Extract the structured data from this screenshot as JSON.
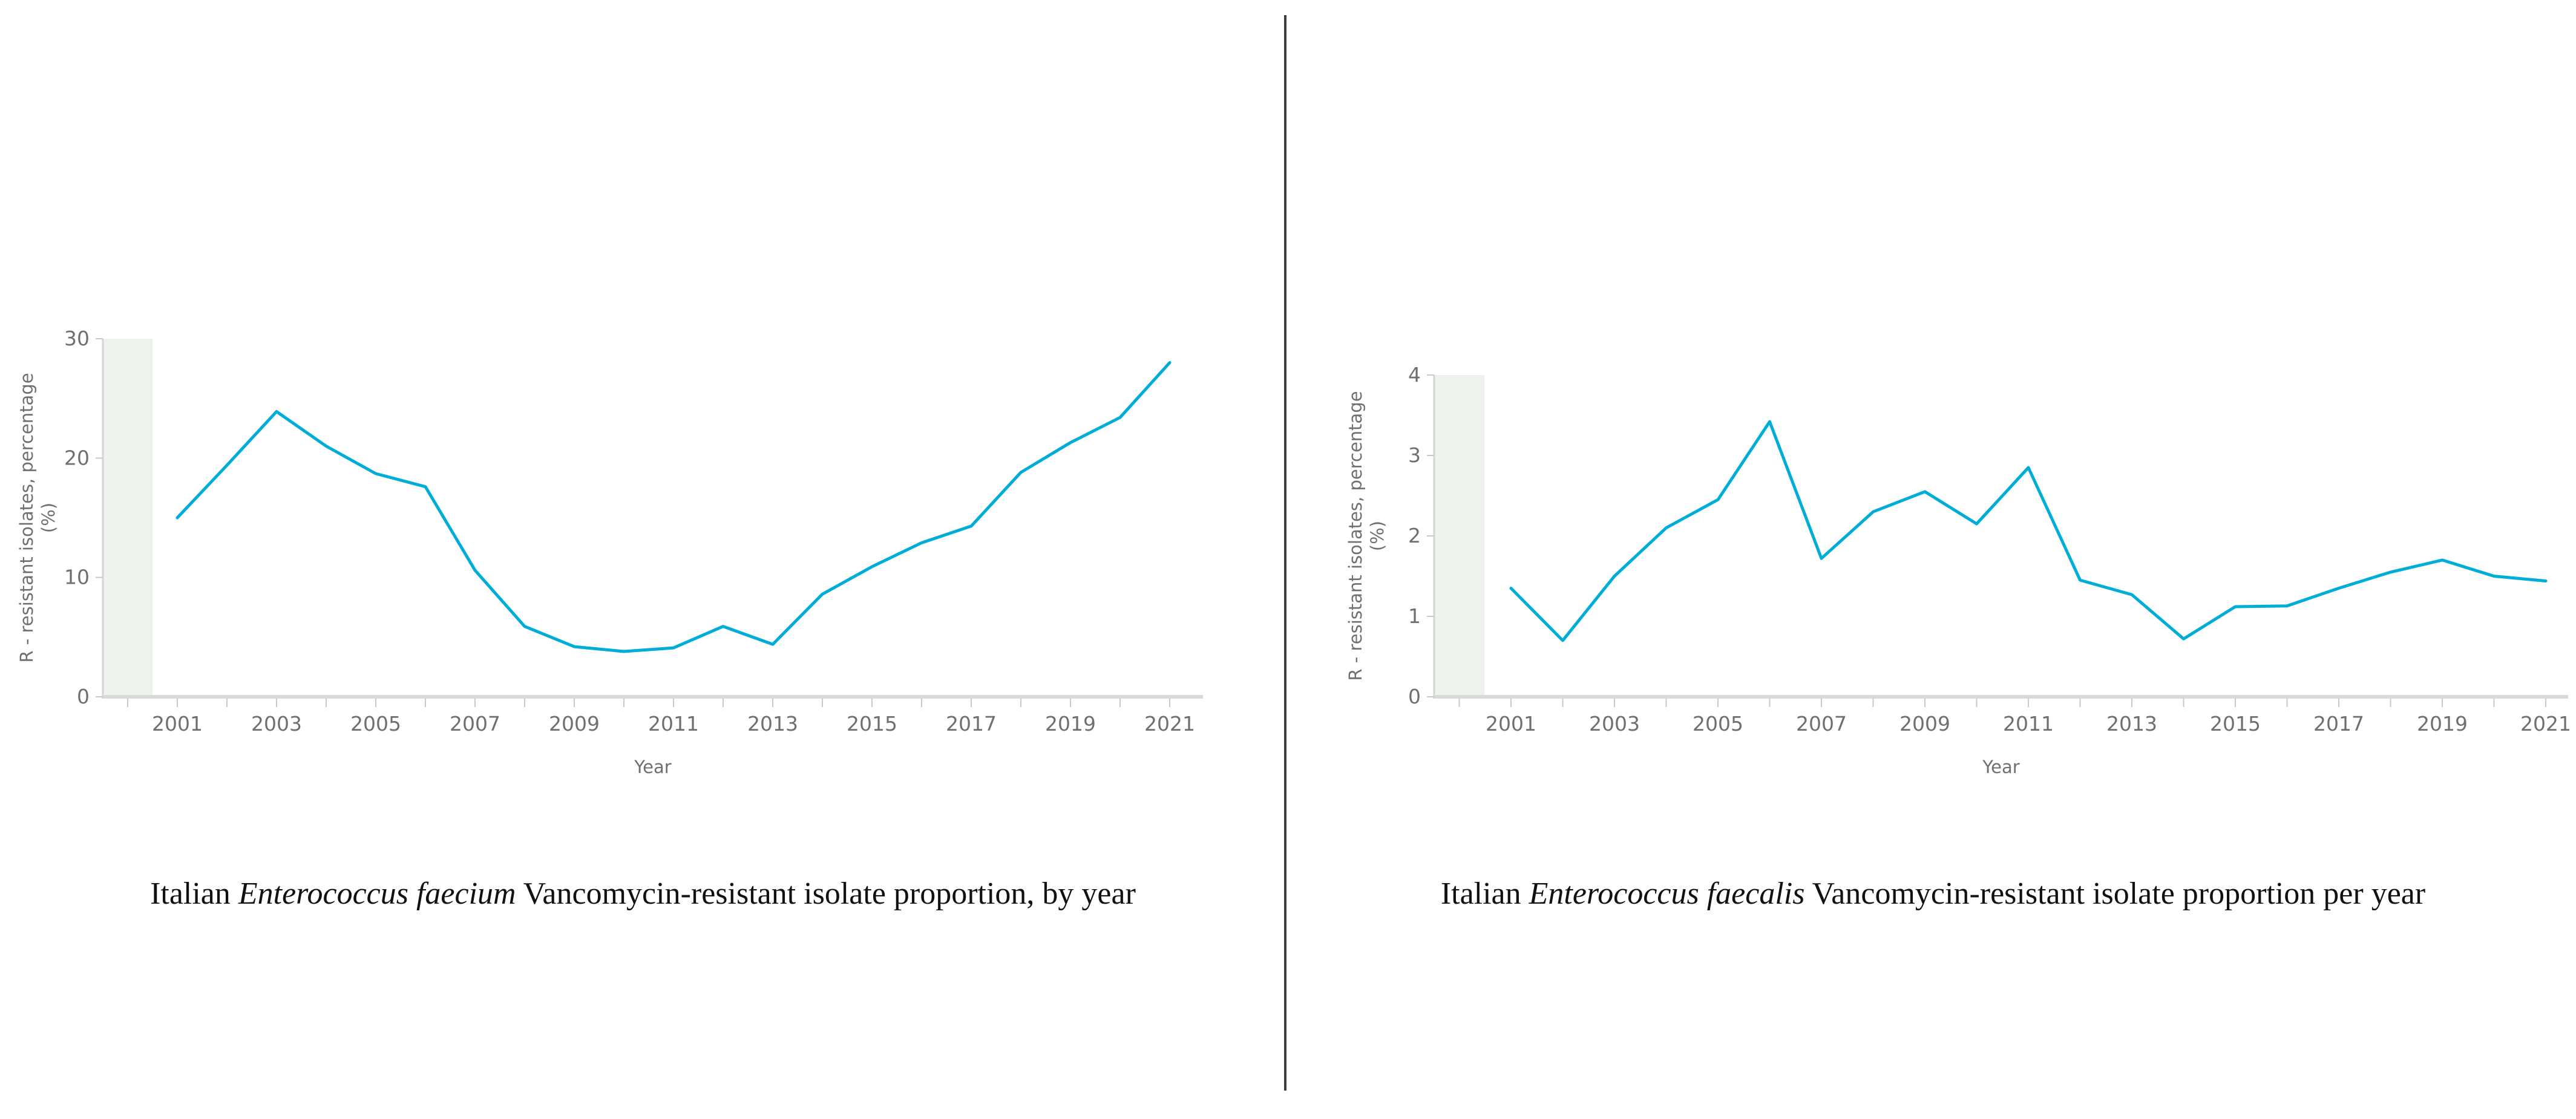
{
  "page": {
    "background_color": "#ffffff",
    "divider_color": "#3e3e3e",
    "line_color": "#00add8",
    "pre_data_band_color": "#edf3ec",
    "axis_line_color": "#d9d9d9",
    "tick_mark_color": "#c9c9c9",
    "label_text_color": "#6f6f6f"
  },
  "captions": [
    {
      "prefix": "Italian ",
      "species": "Enterococcus faecium",
      "suffix": " Vancomycin-resistant isolate proportion, by year"
    },
    {
      "prefix": "Italian ",
      "species": "Enterococcus faecalis",
      "suffix": " Vancomycin-resistant isolate proportion per year"
    }
  ],
  "chart_data": [
    {
      "type": "line",
      "title": "Italian Enterococcus faecium Vancomycin-resistant isolate proportion, by year",
      "xlabel": "Year",
      "ylabel": "R - resistant isolates, percentage (%)",
      "ylabel_lines": [
        "R - resistant isolates, percentage",
        "(%)"
      ],
      "ylim": [
        0,
        30
      ],
      "yticks": [
        0,
        10,
        20,
        30
      ],
      "x_tick_labels": [
        "2001",
        "2003",
        "2005",
        "2007",
        "2009",
        "2011",
        "2013",
        "2015",
        "2017",
        "2019",
        "2021"
      ],
      "x": [
        2001,
        2002,
        2003,
        2004,
        2005,
        2006,
        2007,
        2008,
        2009,
        2010,
        2011,
        2012,
        2013,
        2014,
        2015,
        2016,
        2017,
        2018,
        2019,
        2020,
        2021
      ],
      "values": [
        15.0,
        19.4,
        23.9,
        21.0,
        18.7,
        17.6,
        10.6,
        5.9,
        4.2,
        3.8,
        4.1,
        5.9,
        4.4,
        8.6,
        10.9,
        12.9,
        14.3,
        18.8,
        21.3,
        23.4,
        28.0
      ],
      "grid": false,
      "legend": "none",
      "line_color": "#00add8"
    },
    {
      "type": "line",
      "title": "Italian Enterococcus faecalis Vancomycin-resistant isolate proportion per year",
      "xlabel": "Year",
      "ylabel": "R - resistant isolates, percentage (%)",
      "ylabel_lines": [
        "R - resistant isolates, percentage",
        "(%)"
      ],
      "ylim": [
        0,
        4
      ],
      "yticks": [
        0,
        1,
        2,
        3,
        4
      ],
      "x_tick_labels": [
        "2001",
        "2003",
        "2005",
        "2007",
        "2009",
        "2011",
        "2013",
        "2015",
        "2017",
        "2019",
        "2021"
      ],
      "x": [
        2001,
        2002,
        2003,
        2004,
        2005,
        2006,
        2007,
        2008,
        2009,
        2010,
        2011,
        2012,
        2013,
        2014,
        2015,
        2016,
        2017,
        2018,
        2019,
        2020,
        2021
      ],
      "values": [
        1.35,
        0.7,
        1.5,
        2.1,
        2.45,
        3.42,
        1.72,
        2.3,
        2.55,
        2.15,
        2.85,
        1.45,
        1.27,
        0.72,
        1.12,
        1.13,
        1.35,
        1.55,
        1.7,
        1.5,
        1.44
      ],
      "grid": false,
      "legend": "none",
      "line_color": "#00add8"
    }
  ]
}
